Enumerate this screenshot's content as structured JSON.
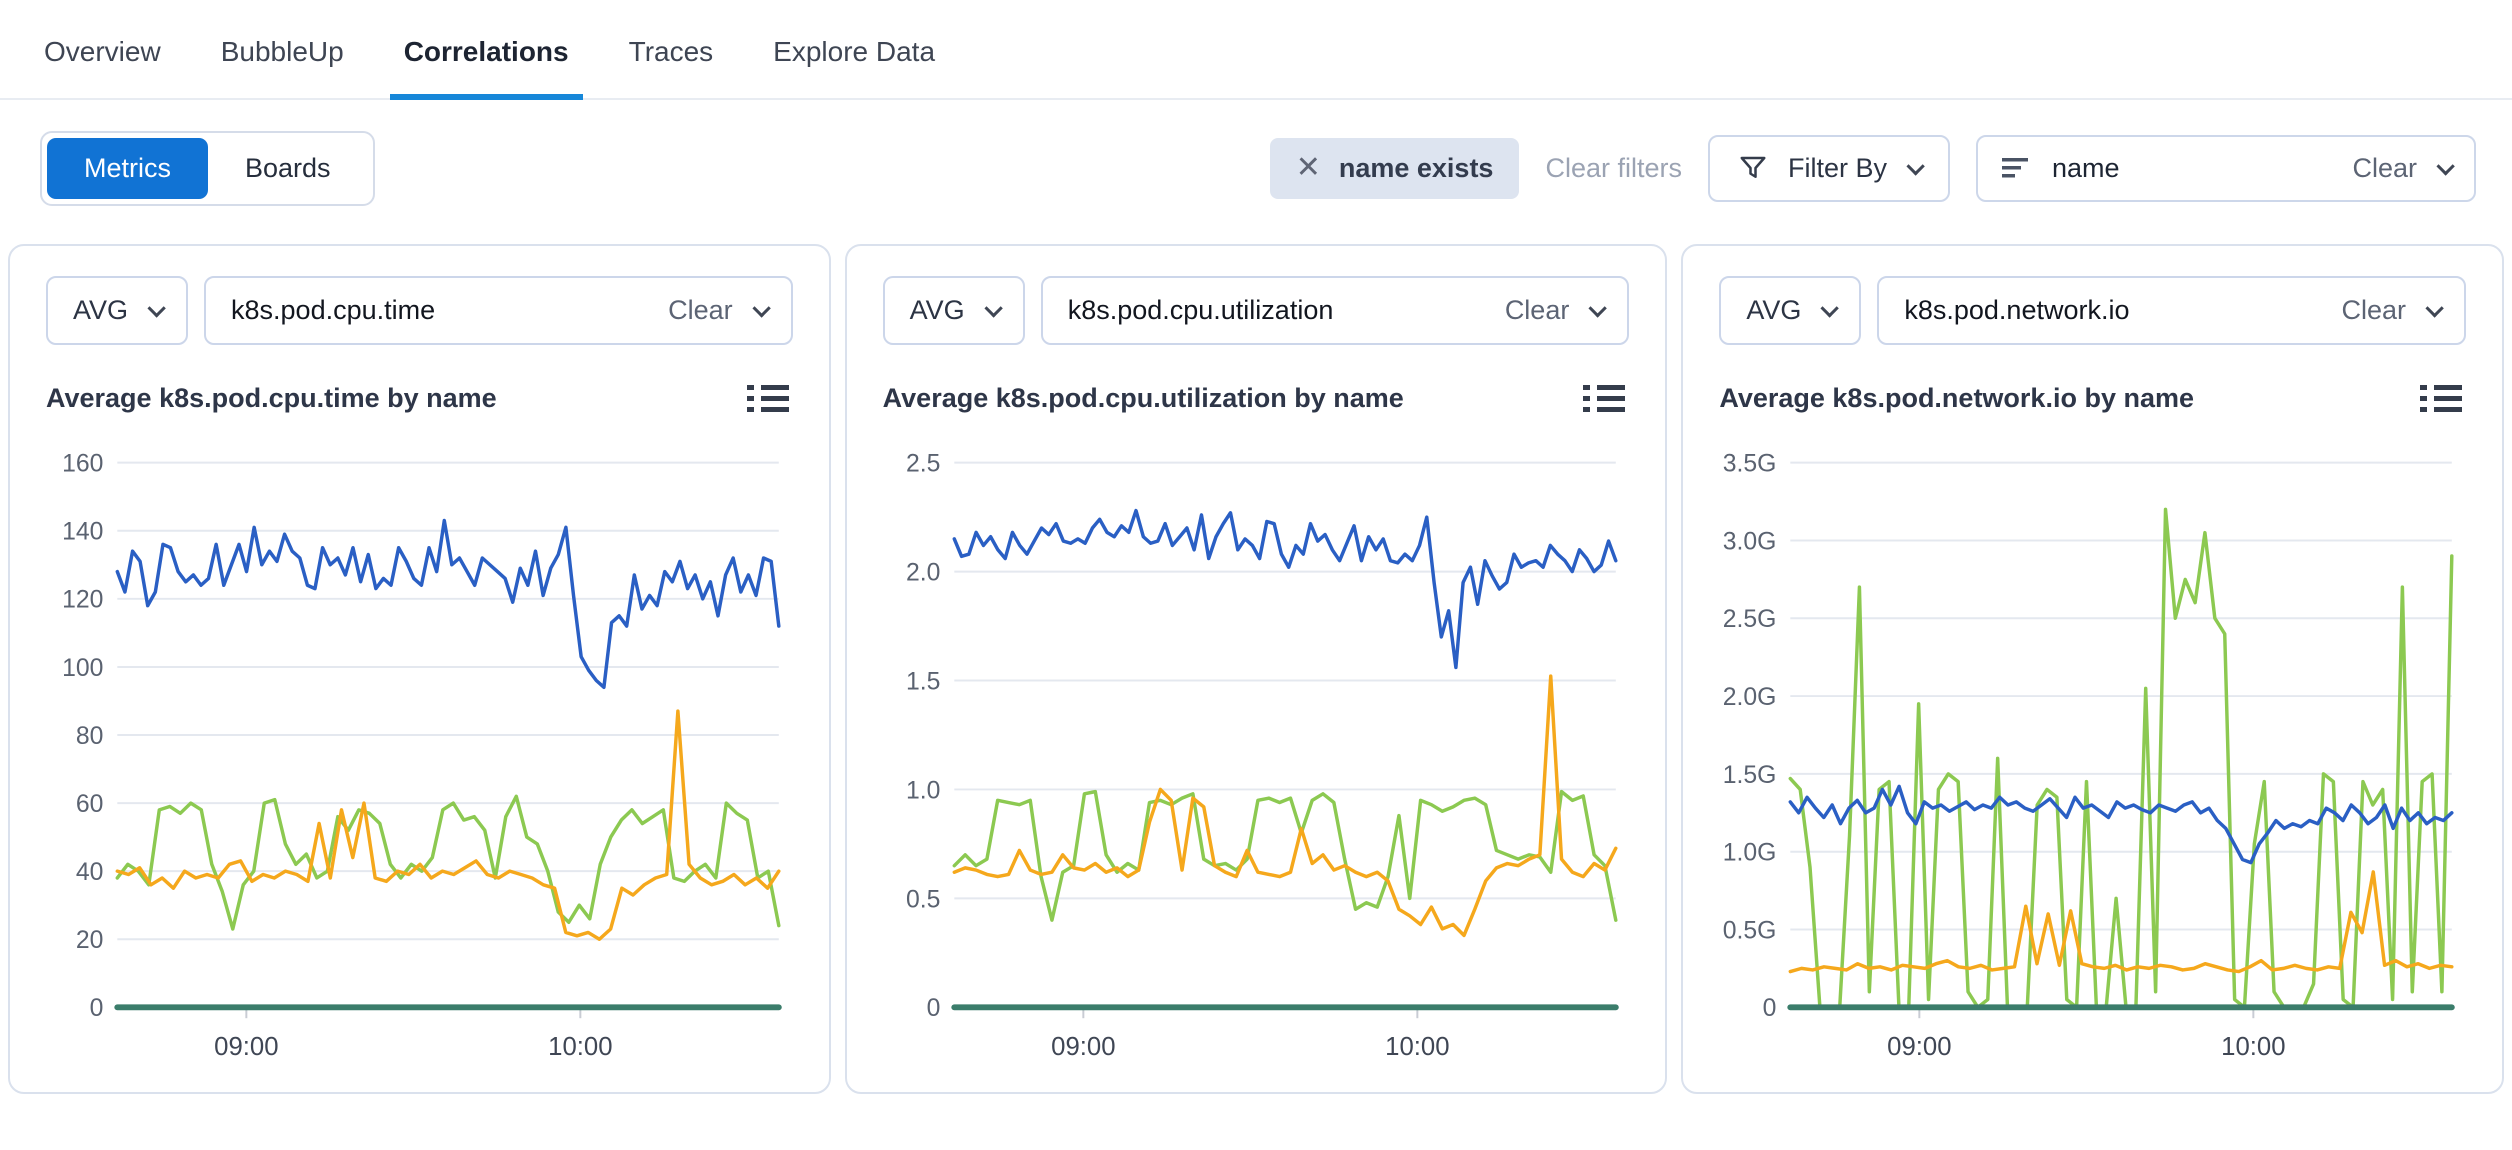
{
  "tabs": {
    "items": [
      {
        "label": "Overview"
      },
      {
        "label": "BubbleUp"
      },
      {
        "label": "Correlations"
      },
      {
        "label": "Traces"
      },
      {
        "label": "Explore Data"
      }
    ],
    "active_label": "Correlations"
  },
  "toolbar": {
    "view_toggle": {
      "metrics_label": "Metrics",
      "boards_label": "Boards"
    },
    "filter_chip": {
      "close_icon": "✕",
      "label": "name exists"
    },
    "clear_filters_label": "Clear filters",
    "filter_by_label": "Filter By",
    "group_by": {
      "value": "name",
      "clear_label": "Clear"
    }
  },
  "colors": {
    "accent_blue": "#1173d4",
    "tab_underline": "#1687d9",
    "series_blue": "#2a5fc4",
    "series_green": "#8cc951",
    "series_orange": "#f5a81c",
    "series_teal": "#3b7d6b",
    "gridline": "#e4e8ef",
    "axis_text": "#5a6270"
  },
  "cards": [
    {
      "agg_label": "AVG",
      "metric_name": "k8s.pod.cpu.time",
      "clear_label": "Clear",
      "title": "Average k8s.pod.cpu.time by name"
    },
    {
      "agg_label": "AVG",
      "metric_name": "k8s.pod.cpu.utilization",
      "clear_label": "Clear",
      "title": "Average k8s.pod.cpu.utilization by name"
    },
    {
      "agg_label": "AVG",
      "metric_name": "k8s.pod.network.io",
      "clear_label": "Clear",
      "title": "Average k8s.pod.network.io by name"
    }
  ],
  "chart_data": [
    {
      "type": "line",
      "title": "Average k8s.pod.cpu.time by name",
      "ylim": [
        0,
        160
      ],
      "grid": true,
      "legend": "none",
      "y_ticks": [
        {
          "value": 160,
          "label": "160"
        },
        {
          "value": 140,
          "label": "140"
        },
        {
          "value": 120,
          "label": "120"
        },
        {
          "value": 100,
          "label": "100"
        },
        {
          "value": 80,
          "label": "80"
        },
        {
          "value": 60,
          "label": "60"
        },
        {
          "value": 40,
          "label": "40"
        },
        {
          "value": 20,
          "label": "20"
        },
        {
          "value": 0,
          "label": "0"
        }
      ],
      "x_ticks": [
        {
          "pos": 0.195,
          "label": "09:00"
        },
        {
          "pos": 0.7,
          "label": "10:00"
        }
      ],
      "series": [
        {
          "name": "blue",
          "color": "#2a5fc4",
          "width": 3.5,
          "values": [
            128,
            122,
            134,
            131,
            118,
            122,
            136,
            135,
            128,
            125,
            127,
            124,
            126,
            136,
            124,
            130,
            136,
            128,
            141,
            130,
            134,
            131,
            139,
            134,
            132,
            124,
            123,
            135,
            130,
            132,
            127,
            135,
            125,
            133,
            123,
            126,
            124,
            135,
            131,
            126,
            124,
            135,
            128,
            143,
            130,
            132,
            128,
            124,
            132,
            130,
            128,
            126,
            119,
            129,
            124,
            134,
            121,
            129,
            133,
            141,
            121,
            103,
            99,
            96,
            94,
            113,
            115,
            112,
            127,
            117,
            121,
            118,
            128,
            125,
            131,
            123,
            127,
            120,
            125,
            115,
            127,
            132,
            122,
            127,
            121,
            132,
            131,
            112
          ]
        },
        {
          "name": "green",
          "color": "#8cc951",
          "width": 3.5,
          "values": [
            38,
            42,
            40,
            36,
            58,
            59,
            57,
            60,
            58,
            42,
            34,
            23,
            36,
            40,
            60,
            61,
            48,
            42,
            45,
            38,
            40,
            56,
            52,
            58,
            57,
            54,
            42,
            38,
            42,
            40,
            44,
            58,
            60,
            55,
            56,
            52,
            38,
            56,
            62,
            50,
            48,
            40,
            28,
            25,
            30,
            26,
            42,
            50,
            55,
            58,
            54,
            56,
            58,
            38,
            37,
            40,
            42,
            38,
            60,
            57,
            55,
            38,
            40,
            24
          ]
        },
        {
          "name": "orange",
          "color": "#f5a81c",
          "width": 3.5,
          "values": [
            40,
            39,
            41,
            36,
            38,
            35,
            40,
            38,
            39,
            38,
            42,
            43,
            37,
            39,
            38,
            40,
            39,
            37,
            54,
            38,
            58,
            44,
            60,
            38,
            37,
            40,
            39,
            42,
            38,
            40,
            39,
            41,
            43,
            39,
            38,
            40,
            39,
            38,
            36,
            35,
            22,
            21,
            22,
            20,
            23,
            35,
            33,
            36,
            38,
            39,
            87,
            42,
            38,
            36,
            37,
            39,
            36,
            38,
            35,
            40
          ]
        },
        {
          "name": "zero",
          "color": "#3b7d6b",
          "width": 6,
          "values": [
            0,
            0
          ]
        }
      ]
    },
    {
      "type": "line",
      "title": "Average k8s.pod.cpu.utilization by name",
      "ylim": [
        0,
        2.5
      ],
      "grid": true,
      "legend": "none",
      "y_ticks": [
        {
          "value": 2.5,
          "label": "2.5"
        },
        {
          "value": 2.0,
          "label": "2.0"
        },
        {
          "value": 1.5,
          "label": "1.5"
        },
        {
          "value": 1.0,
          "label": "1.0"
        },
        {
          "value": 0.5,
          "label": "0.5"
        },
        {
          "value": 0,
          "label": "0"
        }
      ],
      "x_ticks": [
        {
          "pos": 0.195,
          "label": "09:00"
        },
        {
          "pos": 0.7,
          "label": "10:00"
        }
      ],
      "series": [
        {
          "name": "blue",
          "color": "#2a5fc4",
          "width": 3.5,
          "values": [
            2.15,
            2.07,
            2.08,
            2.18,
            2.12,
            2.16,
            2.1,
            2.06,
            2.18,
            2.12,
            2.08,
            2.14,
            2.2,
            2.17,
            2.22,
            2.14,
            2.13,
            2.15,
            2.13,
            2.2,
            2.24,
            2.18,
            2.16,
            2.21,
            2.18,
            2.28,
            2.16,
            2.13,
            2.14,
            2.22,
            2.12,
            2.16,
            2.2,
            2.1,
            2.26,
            2.06,
            2.16,
            2.22,
            2.27,
            2.1,
            2.15,
            2.12,
            2.06,
            2.23,
            2.22,
            2.08,
            2.02,
            2.12,
            2.08,
            2.22,
            2.14,
            2.17,
            2.1,
            2.05,
            2.13,
            2.21,
            2.05,
            2.16,
            2.1,
            2.15,
            2.05,
            2.04,
            2.08,
            2.05,
            2.12,
            2.25,
            1.95,
            1.7,
            1.82,
            1.56,
            1.95,
            2.02,
            1.85,
            2.05,
            1.98,
            1.92,
            1.95,
            2.08,
            2.02,
            2.04,
            2.05,
            2.02,
            2.12,
            2.08,
            2.05,
            2.0,
            2.1,
            2.06,
            2.0,
            2.03,
            2.14,
            2.05
          ]
        },
        {
          "name": "green",
          "color": "#8cc951",
          "width": 3.5,
          "values": [
            0.65,
            0.7,
            0.65,
            0.68,
            0.95,
            0.94,
            0.93,
            0.95,
            0.6,
            0.4,
            0.62,
            0.65,
            0.98,
            0.99,
            0.7,
            0.62,
            0.66,
            0.63,
            0.94,
            0.95,
            0.93,
            0.96,
            0.98,
            0.68,
            0.65,
            0.66,
            0.63,
            0.68,
            0.95,
            0.96,
            0.94,
            0.96,
            0.8,
            0.95,
            0.98,
            0.94,
            0.68,
            0.45,
            0.48,
            0.46,
            0.6,
            0.88,
            0.5,
            0.95,
            0.93,
            0.9,
            0.92,
            0.95,
            0.96,
            0.93,
            0.72,
            0.7,
            0.68,
            0.7,
            0.69,
            0.62,
            0.99,
            0.95,
            0.97,
            0.7,
            0.65,
            0.4
          ]
        },
        {
          "name": "orange",
          "color": "#f5a81c",
          "width": 3.5,
          "values": [
            0.62,
            0.64,
            0.63,
            0.61,
            0.6,
            0.61,
            0.72,
            0.63,
            0.61,
            0.62,
            0.7,
            0.64,
            0.63,
            0.66,
            0.62,
            0.64,
            0.6,
            0.63,
            0.85,
            1.0,
            0.95,
            0.63,
            0.96,
            0.92,
            0.65,
            0.62,
            0.6,
            0.72,
            0.62,
            0.61,
            0.6,
            0.62,
            0.82,
            0.66,
            0.7,
            0.63,
            0.65,
            0.62,
            0.6,
            0.62,
            0.58,
            0.45,
            0.42,
            0.38,
            0.46,
            0.36,
            0.38,
            0.33,
            0.45,
            0.58,
            0.64,
            0.66,
            0.65,
            0.68,
            0.7,
            1.52,
            0.68,
            0.62,
            0.6,
            0.66,
            0.63,
            0.73
          ]
        },
        {
          "name": "zero",
          "color": "#3b7d6b",
          "width": 6,
          "values": [
            0,
            0
          ]
        }
      ]
    },
    {
      "type": "line",
      "title": "Average k8s.pod.network.io by name",
      "ylim": [
        0,
        3.5
      ],
      "grid": true,
      "legend": "none",
      "y_ticks": [
        {
          "value": 3.5,
          "label": "3.5G"
        },
        {
          "value": 3.0,
          "label": "3.0G"
        },
        {
          "value": 2.5,
          "label": "2.5G"
        },
        {
          "value": 2.0,
          "label": "2.0G"
        },
        {
          "value": 1.5,
          "label": "1.5G"
        },
        {
          "value": 1.0,
          "label": "1.0G"
        },
        {
          "value": 0.5,
          "label": "0.5G"
        },
        {
          "value": 0,
          "label": "0"
        }
      ],
      "x_ticks": [
        {
          "pos": 0.195,
          "label": "09:00"
        },
        {
          "pos": 0.7,
          "label": "10:00"
        }
      ],
      "series": [
        {
          "name": "green",
          "color": "#8cc951",
          "width": 3.5,
          "values": [
            1.47,
            1.4,
            0.9,
            0.0,
            0.0,
            0.0,
            1.1,
            2.7,
            0.1,
            1.4,
            1.45,
            0.0,
            0.0,
            1.95,
            0.05,
            1.4,
            1.5,
            1.45,
            0.1,
            0.0,
            0.05,
            1.6,
            0.0,
            0.0,
            0.0,
            1.3,
            1.4,
            1.35,
            0.05,
            0.0,
            1.45,
            0.0,
            0.0,
            0.7,
            0.0,
            0.0,
            2.05,
            0.1,
            3.2,
            2.5,
            2.75,
            2.6,
            3.05,
            2.5,
            2.4,
            0.05,
            0.0,
            1.05,
            1.45,
            0.1,
            0.0,
            0.0,
            0.0,
            0.15,
            1.5,
            1.45,
            0.05,
            0.0,
            1.45,
            1.3,
            1.4,
            0.05,
            2.7,
            0.1,
            1.45,
            1.5,
            0.1,
            2.9
          ]
        },
        {
          "name": "blue",
          "color": "#2a5fc4",
          "width": 3.5,
          "values": [
            1.32,
            1.25,
            1.35,
            1.28,
            1.22,
            1.3,
            1.18,
            1.28,
            1.33,
            1.25,
            1.28,
            1.4,
            1.3,
            1.42,
            1.25,
            1.18,
            1.32,
            1.28,
            1.3,
            1.26,
            1.29,
            1.32,
            1.27,
            1.3,
            1.28,
            1.35,
            1.3,
            1.32,
            1.28,
            1.26,
            1.3,
            1.34,
            1.28,
            1.22,
            1.35,
            1.28,
            1.3,
            1.26,
            1.22,
            1.32,
            1.28,
            1.3,
            1.27,
            1.25,
            1.3,
            1.28,
            1.26,
            1.3,
            1.32,
            1.25,
            1.28,
            1.2,
            1.15,
            1.05,
            0.95,
            0.93,
            1.05,
            1.12,
            1.2,
            1.15,
            1.18,
            1.16,
            1.2,
            1.18,
            1.28,
            1.25,
            1.2,
            1.3,
            1.25,
            1.18,
            1.22,
            1.3,
            1.15,
            1.28,
            1.2,
            1.25,
            1.18,
            1.22,
            1.2,
            1.25
          ]
        },
        {
          "name": "orange",
          "color": "#f5a81c",
          "width": 3.5,
          "values": [
            0.23,
            0.25,
            0.24,
            0.26,
            0.25,
            0.24,
            0.28,
            0.25,
            0.26,
            0.24,
            0.27,
            0.26,
            0.25,
            0.28,
            0.3,
            0.26,
            0.25,
            0.27,
            0.24,
            0.25,
            0.26,
            0.65,
            0.28,
            0.6,
            0.27,
            0.62,
            0.28,
            0.26,
            0.25,
            0.27,
            0.24,
            0.26,
            0.25,
            0.27,
            0.26,
            0.24,
            0.25,
            0.28,
            0.26,
            0.24,
            0.23,
            0.26,
            0.3,
            0.24,
            0.25,
            0.27,
            0.25,
            0.24,
            0.26,
            0.25,
            0.61,
            0.48,
            0.87,
            0.27,
            0.3,
            0.26,
            0.28,
            0.25,
            0.27,
            0.26
          ]
        },
        {
          "name": "zero",
          "color": "#3b7d6b",
          "width": 6,
          "values": [
            0,
            0
          ]
        }
      ]
    }
  ]
}
